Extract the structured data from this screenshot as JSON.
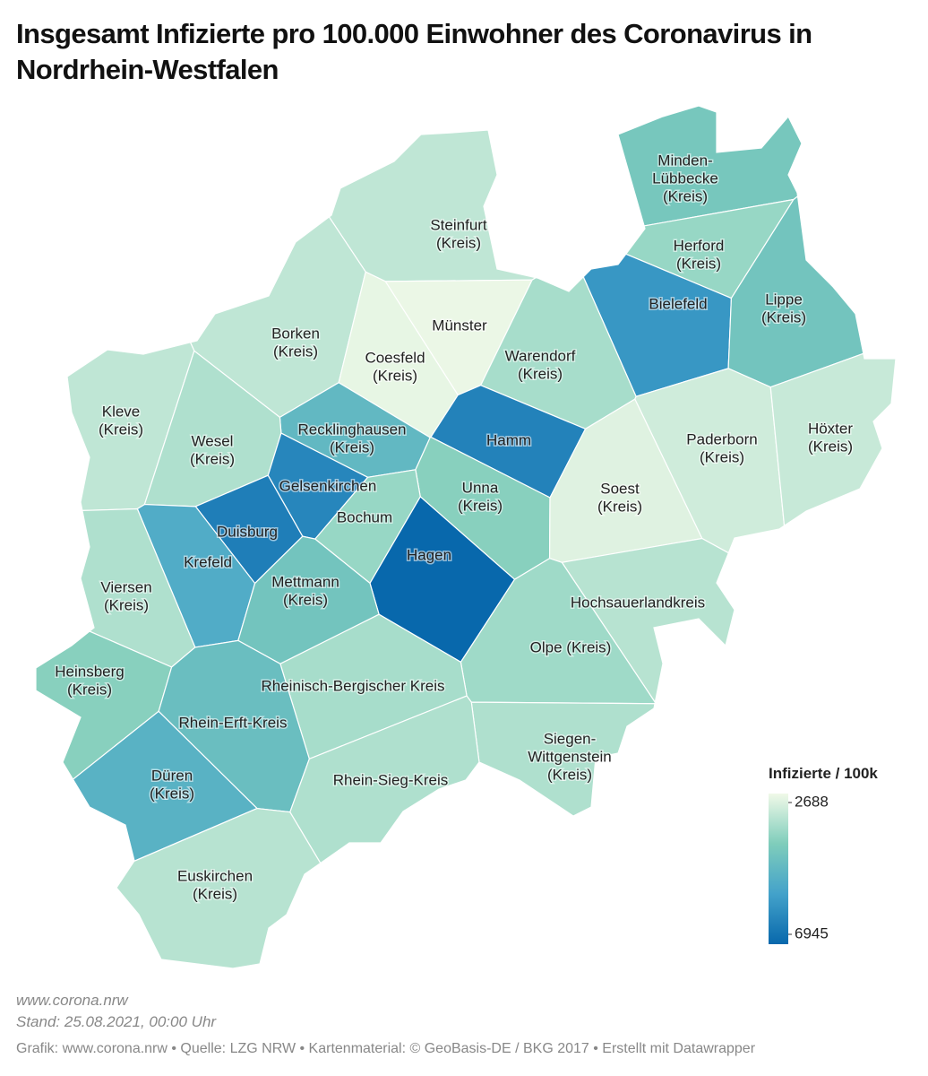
{
  "title": "Insgesamt Infizierte pro 100.000 Einwohner des Coronavirus in Nordrhein-Westfalen",
  "legend": {
    "title": "Infizierte / 100k",
    "min": 2688,
    "max": 6945,
    "colors": [
      "#f0f9e8",
      "#7fcdbb",
      "#43a2ca",
      "#0868ac"
    ]
  },
  "regions": [
    {
      "label": [
        "Minden-",
        "Lübbecke",
        "(Kreis)"
      ],
      "value": 4300
    },
    {
      "label": [
        "Steinfurt",
        "(Kreis)"
      ],
      "value": 3300
    },
    {
      "label": [
        "Herford",
        "(Kreis)"
      ],
      "value": 3800
    },
    {
      "label": [
        "Bielefeld"
      ],
      "value": 5800
    },
    {
      "label": [
        "Lippe",
        "(Kreis)"
      ],
      "value": 4400
    },
    {
      "label": [
        "Münster"
      ],
      "value": 2750
    },
    {
      "label": [
        "Borken",
        "(Kreis)"
      ],
      "value": 3300
    },
    {
      "label": [
        "Coesfeld",
        "(Kreis)"
      ],
      "value": 2800
    },
    {
      "label": [
        "Warendorf",
        "(Kreis)"
      ],
      "value": 3600
    },
    {
      "label": [
        "Kleve",
        "(Kreis)"
      ],
      "value": 3300
    },
    {
      "label": [
        "Recklinghausen",
        "(Kreis)"
      ],
      "value": 4800
    },
    {
      "label": [
        "Hamm"
      ],
      "value": 6300
    },
    {
      "label": [
        "Paderborn",
        "(Kreis)"
      ],
      "value": 3100
    },
    {
      "label": [
        "Höxter",
        "(Kreis)"
      ],
      "value": 3200
    },
    {
      "label": [
        "Wesel",
        "(Kreis)"
      ],
      "value": 3500
    },
    {
      "label": [
        "Gelsenkirchen"
      ],
      "value": 6200
    },
    {
      "label": [
        "Unna",
        "(Kreis)"
      ],
      "value": 4000
    },
    {
      "label": [
        "Soest",
        "(Kreis)"
      ],
      "value": 2900
    },
    {
      "label": [
        "Bochum"
      ],
      "value": 3800
    },
    {
      "label": [
        "Duisburg"
      ],
      "value": 6400
    },
    {
      "label": [
        "Krefeld"
      ],
      "value": 5200
    },
    {
      "label": [
        "Hagen"
      ],
      "value": 6945
    },
    {
      "label": [
        "Mettmann",
        "(Kreis)"
      ],
      "value": 4400
    },
    {
      "label": [
        "Hochsauerlandkreis"
      ],
      "value": 3400
    },
    {
      "label": [
        "Viersen",
        "(Kreis)"
      ],
      "value": 3500
    },
    {
      "label": [
        "Olpe (Kreis)"
      ],
      "value": 3700
    },
    {
      "label": [
        "Heinsberg",
        "(Kreis)"
      ],
      "value": 4000
    },
    {
      "label": [
        "Rheinisch-Bergischer Kreis"
      ],
      "value": 3600
    },
    {
      "label": [
        "Rhein-Erft-Kreis"
      ],
      "value": 4600
    },
    {
      "label": [
        "Siegen-",
        "Wittgenstein",
        "(Kreis)"
      ],
      "value": 3500
    },
    {
      "label": [
        "Düren",
        "(Kreis)"
      ],
      "value": 5000
    },
    {
      "label": [
        "Rhein-Sieg-Kreis"
      ],
      "value": 3500
    },
    {
      "label": [
        "Euskirchen",
        "(Kreis)"
      ],
      "value": 3400
    }
  ],
  "footer": {
    "source_url": "www.corona.nrw",
    "date": "Stand: 25.08.2021, 00:00 Uhr",
    "credits": "Grafik: www.corona.nrw • Quelle: LZG NRW • Kartenmaterial: © GeoBasis-DE / BKG 2017 • Erstellt mit Datawrapper"
  }
}
